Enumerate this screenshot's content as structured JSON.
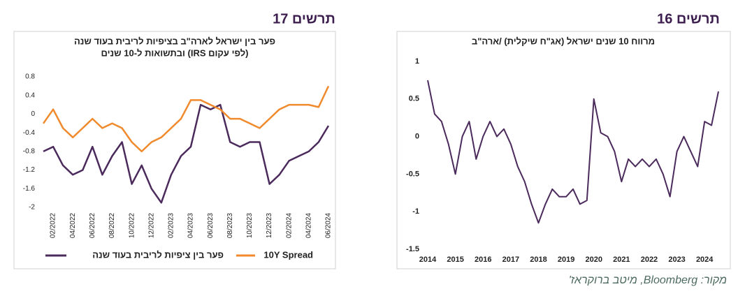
{
  "headings": [
    "תרשים 17",
    "תרשים 16"
  ],
  "source": "מקור: Bloomberg, מיטב ברוקראז'",
  "chart_data": [
    {
      "type": "line",
      "title": [
        "פער בין ישראל לארה\"ב בציפיות לריבית בעוד שנה",
        "(לפי עקום IRS) ובתשואות ל-10 שנים"
      ],
      "categories": [
        null,
        "02/2022",
        null,
        "04/2022",
        null,
        "06/2022",
        null,
        "08/2022",
        null,
        "10/2022",
        null,
        "12/2022",
        null,
        "02/2023",
        null,
        "04/2023",
        null,
        "06/2023",
        null,
        "08/2023",
        null,
        "10/2023",
        null,
        "12/2023",
        null,
        "02/2024",
        null,
        "04/2024",
        null,
        "06/2024"
      ],
      "ylim": [
        -2,
        0.8
      ],
      "yticks": [
        0.8,
        0.4,
        0,
        -0.4,
        -0.8,
        -1.2,
        -1.6,
        -2
      ],
      "legend": "bottom",
      "series": [
        {
          "name": "פער בין ציפיות לריבית בעוד שנה",
          "color": "#4b2a5c",
          "values": [
            -0.8,
            -0.7,
            -1.1,
            -1.3,
            -1.2,
            -0.7,
            -1.3,
            -0.9,
            -0.6,
            -1.5,
            -1.1,
            -1.6,
            -1.9,
            -1.3,
            -0.9,
            -0.7,
            0.2,
            0.1,
            0.2,
            -0.6,
            -0.7,
            -0.6,
            -0.6,
            -1.5,
            -1.3,
            -1.0,
            -0.9,
            -0.8,
            -0.6,
            -0.25
          ]
        },
        {
          "name": "10Y Spread",
          "color": "#f08a2c",
          "values": [
            -0.2,
            0.1,
            -0.3,
            -0.5,
            -0.3,
            -0.1,
            -0.3,
            -0.2,
            -0.3,
            -0.6,
            -0.8,
            -0.6,
            -0.5,
            -0.3,
            -0.1,
            0.3,
            0.3,
            0.2,
            0.1,
            -0.1,
            -0.1,
            -0.2,
            -0.3,
            -0.1,
            0.1,
            0.2,
            0.2,
            0.2,
            0.15,
            0.6
          ]
        }
      ]
    },
    {
      "type": "line",
      "title": [
        "מרווח 10 שנים ישראל (אג\"ח שיקלית) /ארה\"ב"
      ],
      "x": [
        2014,
        2014.25,
        2014.5,
        2014.75,
        2015,
        2015.25,
        2015.5,
        2015.75,
        2016,
        2016.25,
        2016.5,
        2016.75,
        2017,
        2017.25,
        2017.5,
        2017.75,
        2018,
        2018.25,
        2018.5,
        2018.75,
        2019,
        2019.25,
        2019.5,
        2019.75,
        2020,
        2020.25,
        2020.5,
        2020.75,
        2021,
        2021.25,
        2021.5,
        2021.75,
        2022,
        2022.25,
        2022.5,
        2022.75,
        2023,
        2023.25,
        2023.5,
        2023.75,
        2024,
        2024.25,
        2024.5
      ],
      "xlim": [
        2014,
        2024.5
      ],
      "xticks": [
        2014,
        2015,
        2016,
        2017,
        2018,
        2019,
        2020,
        2021,
        2022,
        2023,
        2024
      ],
      "ylim": [
        -1.5,
        1
      ],
      "yticks": [
        1,
        0.5,
        0,
        -0.5,
        -1,
        -1.5
      ],
      "series": [
        {
          "color": "#4b2a5c",
          "values": [
            0.75,
            0.3,
            0.2,
            -0.1,
            -0.5,
            0.0,
            0.2,
            -0.3,
            0.0,
            0.2,
            0.0,
            0.1,
            -0.1,
            -0.4,
            -0.6,
            -0.9,
            -1.15,
            -0.9,
            -0.7,
            -0.8,
            -0.8,
            -0.7,
            -0.9,
            -0.85,
            0.5,
            0.05,
            0.0,
            -0.2,
            -0.6,
            -0.3,
            -0.4,
            -0.3,
            -0.4,
            -0.3,
            -0.5,
            -0.8,
            -0.2,
            0.0,
            -0.2,
            -0.4,
            0.2,
            0.15,
            0.6
          ]
        }
      ]
    }
  ]
}
